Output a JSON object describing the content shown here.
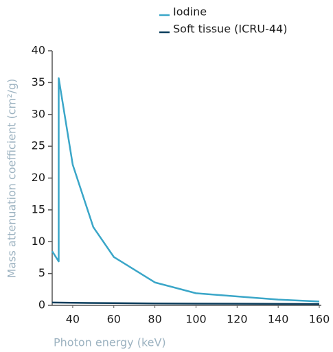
{
  "chart_data": {
    "type": "line",
    "x_label": "Photon energy (keV)",
    "y_label": "Mass attenuation coefficient (cm²/g)",
    "series": [
      {
        "name": "Iodine",
        "color": "#3aa6c8",
        "x": [
          30,
          33.17,
          33.17,
          40,
          50,
          60,
          80,
          100,
          120,
          140,
          160
        ],
        "values": [
          8.5,
          6.9,
          35.7,
          22.1,
          12.3,
          7.6,
          3.6,
          1.9,
          1.4,
          0.9,
          0.6
        ]
      },
      {
        "name": "Soft tissue (ICRU-44)",
        "color": "#0b3d5c",
        "x": [
          30,
          40,
          60,
          80,
          100,
          120,
          140,
          160
        ],
        "values": [
          0.45,
          0.4,
          0.35,
          0.3,
          0.27,
          0.25,
          0.23,
          0.2
        ]
      }
    ],
    "xlim": [
      30,
      160
    ],
    "xticks": [
      40,
      60,
      80,
      100,
      120,
      140,
      160
    ],
    "ylim": [
      0,
      40
    ],
    "yticks": [
      0,
      5,
      10,
      15,
      20,
      25,
      30,
      35,
      40
    ],
    "grid": false
  }
}
